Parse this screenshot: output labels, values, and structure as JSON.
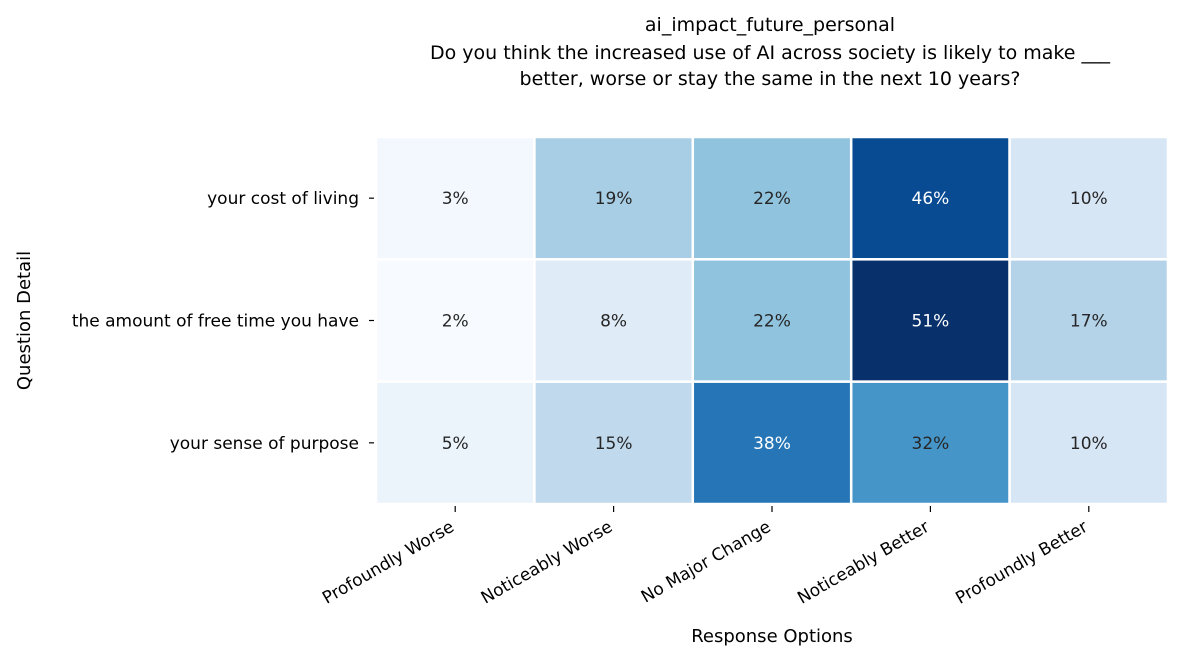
{
  "chart_data": {
    "type": "heatmap",
    "title_lines": [
      "ai_impact_future_personal",
      "Do you think the increased use of AI across society is likely to make  ___",
      "better, worse or stay the same in the next 10 years?"
    ],
    "xlabel": "Response Options",
    "ylabel": "Question Detail",
    "columns": [
      "Profoundly Worse",
      "Noticeably Worse",
      "No Major Change",
      "Noticeably Better",
      "Profoundly Better"
    ],
    "rows": [
      "your cost of living",
      "the amount of free time you have",
      "your sense of purpose"
    ],
    "values": [
      [
        3,
        19,
        22,
        46,
        10
      ],
      [
        2,
        8,
        22,
        51,
        17
      ],
      [
        5,
        15,
        38,
        32,
        10
      ]
    ],
    "labels": [
      [
        "3%",
        "19%",
        "22%",
        "46%",
        "10%"
      ],
      [
        "2%",
        "8%",
        "22%",
        "51%",
        "17%"
      ],
      [
        "5%",
        "15%",
        "38%",
        "32%",
        "10%"
      ]
    ],
    "colormap": "Blues",
    "value_range": [
      2,
      51
    ],
    "colorbar": false
  }
}
